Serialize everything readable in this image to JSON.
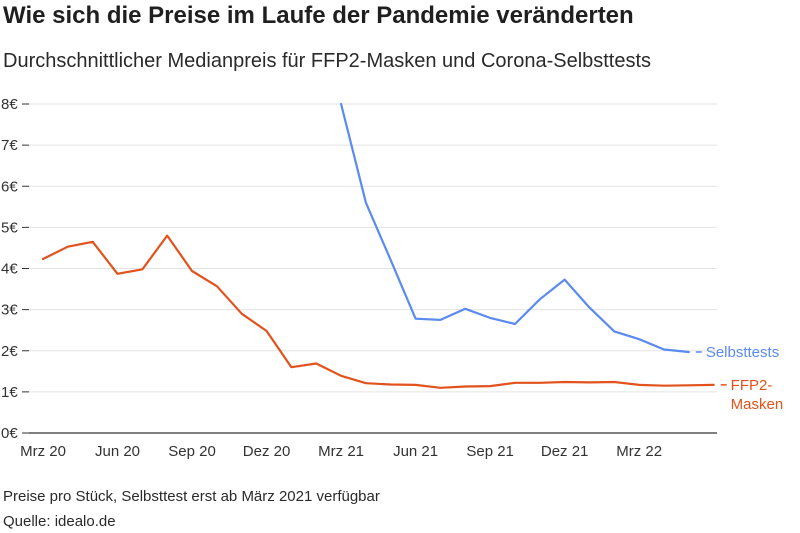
{
  "title": "Wie sich die Preise im Laufe der Pandemie veränderten",
  "subtitle": "Durchschnittlicher Medianpreis für FFP2-Masken und Corona-Selbsttests",
  "note": "Preise pro Stück, Selbsttest erst ab März 2021 verfügbar",
  "source": "Quelle: idealo.de",
  "colors": {
    "selbsttests": "#5b8af0",
    "ffp2": "#e2521d",
    "grid": "#e3e3e3",
    "axis": "#333333"
  },
  "chart_data": {
    "type": "line",
    "x": [
      "2020-03",
      "2020-04",
      "2020-05",
      "2020-06",
      "2020-07",
      "2020-08",
      "2020-09",
      "2020-10",
      "2020-11",
      "2020-12",
      "2021-01",
      "2021-02",
      "2021-03",
      "2021-04",
      "2021-05",
      "2021-06",
      "2021-07",
      "2021-08",
      "2021-09",
      "2021-10",
      "2021-11",
      "2021-12",
      "2022-01",
      "2022-02",
      "2022-03",
      "2022-04",
      "2022-05",
      "2022-06"
    ],
    "xticks": [
      {
        "x": "2020-03",
        "label": "Mrz 20"
      },
      {
        "x": "2020-06",
        "label": "Jun 20"
      },
      {
        "x": "2020-09",
        "label": "Sep 20"
      },
      {
        "x": "2020-12",
        "label": "Dez 20"
      },
      {
        "x": "2021-03",
        "label": "Mrz 21"
      },
      {
        "x": "2021-06",
        "label": "Jun 21"
      },
      {
        "x": "2021-09",
        "label": "Sep 21"
      },
      {
        "x": "2021-12",
        "label": "Dez 21"
      },
      {
        "x": "2022-03",
        "label": "Mrz 22"
      }
    ],
    "yticks": [
      {
        "v": 0,
        "label": "0€"
      },
      {
        "v": 1,
        "label": "1€"
      },
      {
        "v": 2,
        "label": "2€"
      },
      {
        "v": 3,
        "label": "3€"
      },
      {
        "v": 4,
        "label": "4€"
      },
      {
        "v": 5,
        "label": "5€"
      },
      {
        "v": 6,
        "label": "6€"
      },
      {
        "v": 7,
        "label": "7€"
      },
      {
        "v": 8,
        "label": "8€"
      }
    ],
    "ylim": [
      0,
      8
    ],
    "grid": true,
    "series": [
      {
        "name": "Selbsttests",
        "label_lines": [
          "Selbsttests"
        ],
        "color": "#5b8af0",
        "values": [
          null,
          null,
          null,
          null,
          null,
          null,
          null,
          null,
          null,
          null,
          null,
          null,
          8.0,
          5.6,
          4.2,
          2.78,
          2.75,
          3.02,
          2.8,
          2.65,
          3.25,
          3.73,
          3.05,
          2.47,
          2.28,
          2.03,
          1.97,
          null
        ]
      },
      {
        "name": "FFP2-Masken",
        "label_lines": [
          "FFP2-",
          "Masken"
        ],
        "color": "#e2521d",
        "values": [
          4.23,
          4.53,
          4.65,
          3.87,
          3.98,
          4.8,
          3.94,
          3.57,
          2.9,
          2.48,
          1.6,
          1.69,
          1.39,
          1.21,
          1.18,
          1.17,
          1.1,
          1.13,
          1.14,
          1.22,
          1.22,
          1.24,
          1.23,
          1.24,
          1.17,
          1.15,
          1.16,
          1.17
        ]
      }
    ]
  }
}
